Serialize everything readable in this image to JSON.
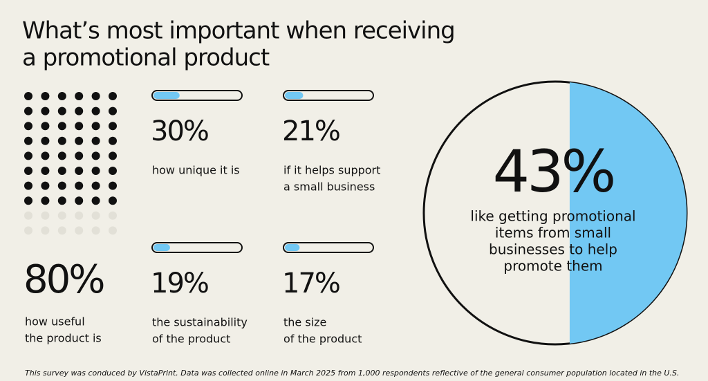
{
  "title": [
    "What’s most important when receiving",
    "a promotional product"
  ],
  "stats": [
    {
      "value": 80,
      "label": "80%",
      "description": [
        "how useful",
        "the product is"
      ]
    },
    {
      "value": 30,
      "label": "30%",
      "description": [
        "how unique it is"
      ]
    },
    {
      "value": 21,
      "label": "21%",
      "description": [
        "if it helps support",
        "a small business"
      ]
    },
    {
      "value": 19,
      "label": "19%",
      "description": [
        "the sustainability",
        "of the product"
      ]
    },
    {
      "value": 17,
      "label": "17%",
      "description": [
        "the size",
        "of the product"
      ]
    }
  ],
  "highlight": {
    "value": 43,
    "label": "43%",
    "description": [
      "like getting promotional",
      "items from small",
      "businesses to help",
      "promote them"
    ]
  },
  "accent_color": "#72c8f3",
  "footnote": "This survey was conduced by VistaPrint. Data was collected online in March 2025 from 1,000 respondents reflective of the general consumer population located in the U.S."
}
